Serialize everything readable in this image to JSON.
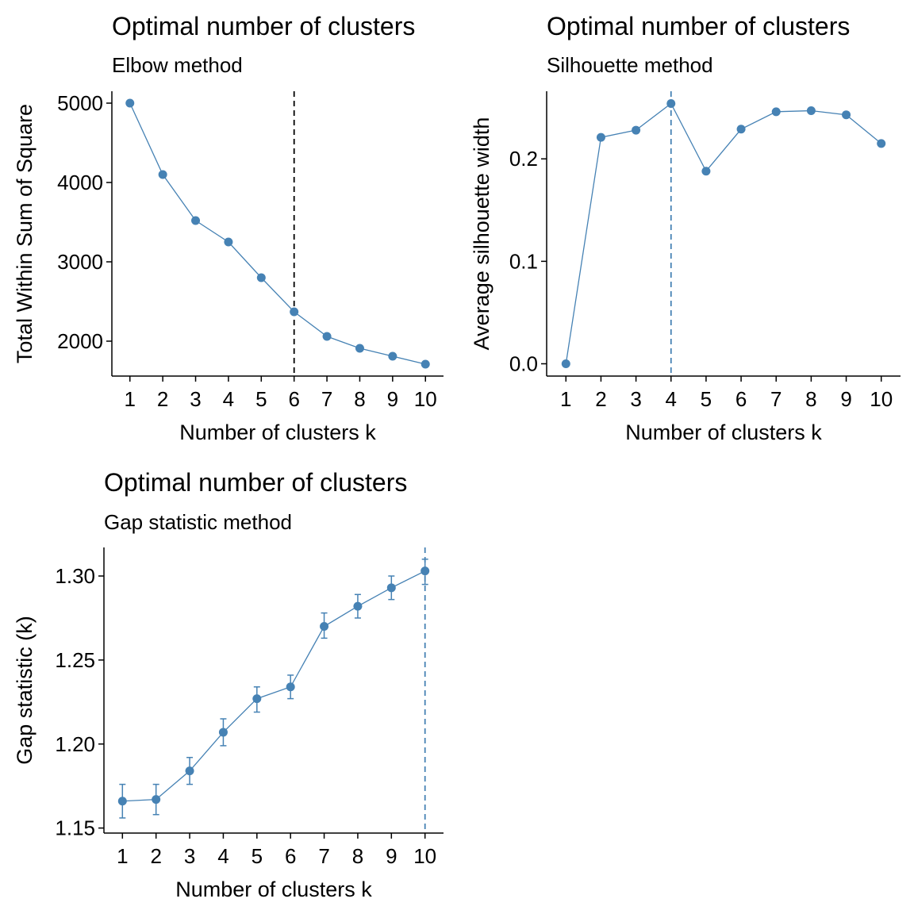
{
  "colors": {
    "series": "#4682B4",
    "vline_elbow": "#000000",
    "axis": "#000000"
  },
  "chart_data": [
    {
      "type": "line",
      "title": "Optimal number of clusters",
      "subtitle": "Elbow method",
      "xlabel": "Number of clusters k",
      "ylabel": "Total Within Sum of Square",
      "x": [
        1,
        2,
        3,
        4,
        5,
        6,
        7,
        8,
        9,
        10
      ],
      "y": [
        5000,
        4100,
        3520,
        3250,
        2800,
        2370,
        2060,
        1910,
        1810,
        1710
      ],
      "xlim": [
        0.45,
        10.55
      ],
      "ylim": [
        1560,
        5150
      ],
      "yticks": [
        2000,
        3000,
        4000,
        5000
      ],
      "ytick_labels": [
        "2000",
        "3000",
        "4000",
        "5000"
      ],
      "xtick_labels": [
        "1",
        "2",
        "3",
        "4",
        "5",
        "6",
        "7",
        "8",
        "9",
        "10"
      ],
      "vline": 6,
      "vline_style": "dashed",
      "grid": false
    },
    {
      "type": "line",
      "title": "Optimal number of clusters",
      "subtitle": "Silhouette method",
      "xlabel": "Number of clusters k",
      "ylabel": "Average silhouette width",
      "x": [
        1,
        2,
        3,
        4,
        5,
        6,
        7,
        8,
        9,
        10
      ],
      "y": [
        0.0,
        0.221,
        0.228,
        0.254,
        0.188,
        0.229,
        0.246,
        0.247,
        0.243,
        0.215
      ],
      "xlim": [
        0.45,
        10.55
      ],
      "ylim": [
        -0.012,
        0.266
      ],
      "yticks": [
        0.0,
        0.1,
        0.2
      ],
      "ytick_labels": [
        "0.0",
        "0.1",
        "0.2"
      ],
      "xtick_labels": [
        "1",
        "2",
        "3",
        "4",
        "5",
        "6",
        "7",
        "8",
        "9",
        "10"
      ],
      "vline": 4,
      "vline_style": "dashed",
      "grid": false
    },
    {
      "type": "line",
      "title": "Optimal number of clusters",
      "subtitle": "Gap statistic method",
      "xlabel": "Number of clusters k",
      "ylabel": "Gap statistic (k)",
      "x": [
        1,
        2,
        3,
        4,
        5,
        6,
        7,
        8,
        9,
        10
      ],
      "y": [
        1.166,
        1.167,
        1.184,
        1.207,
        1.227,
        1.234,
        1.27,
        1.282,
        1.293,
        1.303
      ],
      "ymin": [
        1.156,
        1.158,
        1.176,
        1.199,
        1.219,
        1.227,
        1.263,
        1.275,
        1.286,
        1.295
      ],
      "ymax": [
        1.176,
        1.176,
        1.192,
        1.215,
        1.234,
        1.241,
        1.278,
        1.289,
        1.3,
        1.31
      ],
      "xlim": [
        0.45,
        10.55
      ],
      "ylim": [
        1.147,
        1.317
      ],
      "yticks": [
        1.15,
        1.2,
        1.25,
        1.3
      ],
      "ytick_labels": [
        "1.15",
        "1.20",
        "1.25",
        "1.30"
      ],
      "xtick_labels": [
        "1",
        "2",
        "3",
        "4",
        "5",
        "6",
        "7",
        "8",
        "9",
        "10"
      ],
      "vline": 10,
      "vline_style": "dashed",
      "grid": false
    }
  ]
}
